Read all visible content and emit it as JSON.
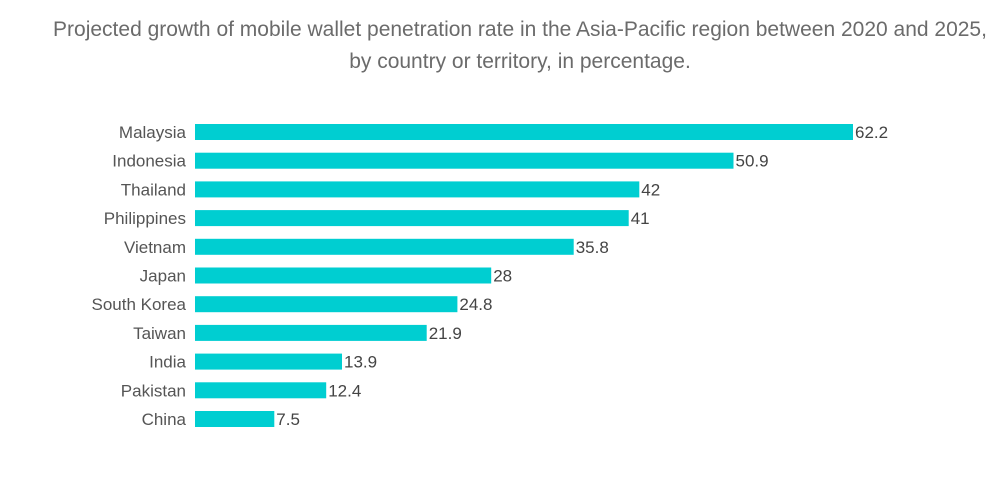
{
  "chart_data": {
    "type": "bar",
    "orientation": "horizontal",
    "title": "Projected growth of mobile wallet penetration rate in the Asia-Pacific region between 2020 and 2025, by country or territory, in percentage.",
    "categories": [
      "Malaysia",
      "Indonesia",
      "Thailand",
      "Philippines",
      "Vietnam",
      "Japan",
      "South Korea",
      "Taiwan",
      "India",
      "Pakistan",
      "China"
    ],
    "values": [
      62.2,
      50.9,
      42,
      41,
      35.8,
      28,
      24.8,
      21.9,
      13.9,
      12.4,
      7.5
    ],
    "value_labels": [
      "62.2",
      "50.9",
      "42",
      "41",
      "35.8",
      "28",
      "24.8",
      "21.9",
      "13.9",
      "12.4",
      "7.5"
    ],
    "xlim": [
      0,
      62.2
    ],
    "grid": false,
    "legend": "none",
    "bar_color": "#00CED1"
  }
}
